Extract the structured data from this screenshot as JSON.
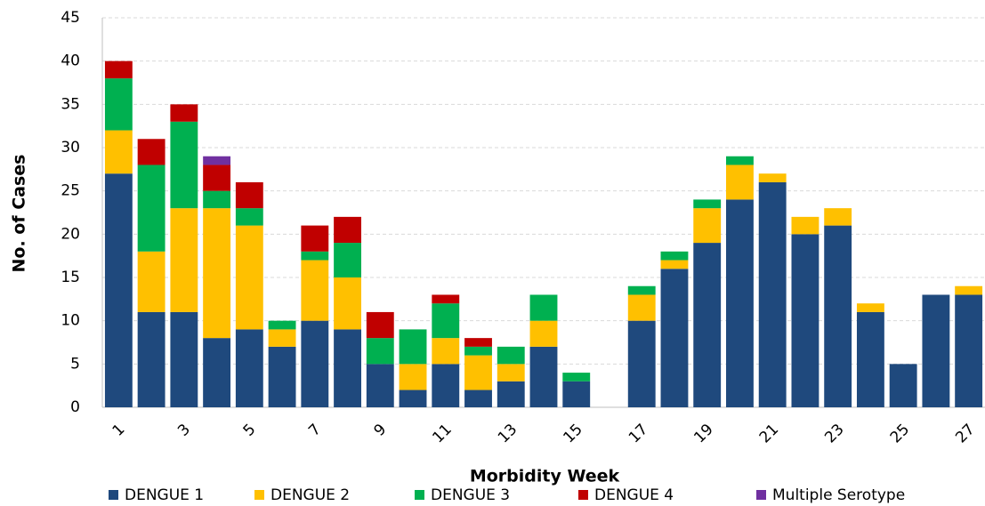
{
  "chart_data": {
    "type": "stacked_bar",
    "x_label": "Morbidity Week",
    "y_label": "No. of Cases",
    "categories": [
      "1",
      null,
      "3",
      null,
      "5",
      null,
      "7",
      null,
      "9",
      null,
      "11",
      null,
      "13",
      null,
      "15",
      null,
      "17",
      null,
      "19",
      null,
      "21",
      null,
      "23",
      null,
      "25",
      null,
      "27"
    ],
    "series": [
      {
        "name": "DENGUE 1",
        "color": "#1f497d",
        "values": [
          27,
          11,
          11,
          8,
          9,
          7,
          10,
          9,
          5,
          2,
          5,
          2,
          3,
          7,
          3,
          0,
          10,
          16,
          19,
          24,
          26,
          20,
          21,
          11,
          5,
          13,
          13
        ]
      },
      {
        "name": "DENGUE 2",
        "color": "#ffc000",
        "values": [
          5,
          7,
          12,
          15,
          12,
          2,
          7,
          6,
          0,
          3,
          3,
          4,
          2,
          3,
          0,
          0,
          3,
          1,
          4,
          4,
          1,
          2,
          2,
          1,
          0,
          0,
          1
        ]
      },
      {
        "name": "DENGUE 3",
        "color": "#00b050",
        "values": [
          6,
          10,
          10,
          2,
          2,
          1,
          1,
          4,
          3,
          4,
          4,
          1,
          2,
          3,
          1,
          0,
          1,
          1,
          1,
          1,
          0,
          0,
          0,
          0,
          0,
          0,
          0
        ]
      },
      {
        "name": "DENGUE 4",
        "color": "#c00000",
        "values": [
          2,
          3,
          2,
          3,
          3,
          0,
          3,
          3,
          3,
          0,
          1,
          1,
          0,
          0,
          0,
          0,
          0,
          0,
          0,
          0,
          0,
          0,
          0,
          0,
          0,
          0,
          0
        ]
      },
      {
        "name": "Multiple Serotype",
        "color": "#7030a0",
        "values": [
          0,
          0,
          0,
          1,
          0,
          0,
          0,
          0,
          0,
          0,
          0,
          0,
          0,
          0,
          0,
          0,
          0,
          0,
          0,
          0,
          0,
          0,
          0,
          0,
          0,
          0,
          0
        ]
      }
    ],
    "ylim": [
      0,
      45
    ],
    "yticks": [
      0,
      5,
      10,
      15,
      20,
      25,
      30,
      35,
      40,
      45
    ],
    "grid": true,
    "legend": "bottom"
  }
}
